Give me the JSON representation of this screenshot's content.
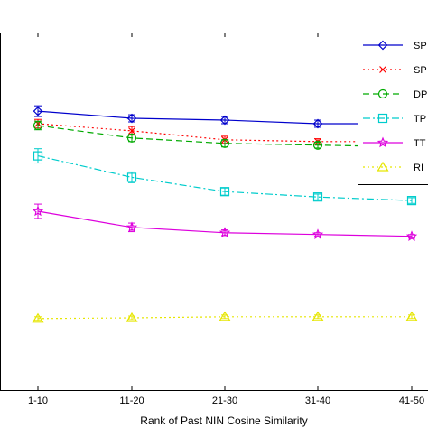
{
  "chart_data": {
    "type": "line",
    "title": "",
    "xlabel": "Rank of Past NIN Cosine Similarity",
    "ylabel": "",
    "categories": [
      "1-10",
      "11-20",
      "21-30",
      "31-40",
      "41-50"
    ],
    "ylim": [
      0,
      1
    ],
    "grid": false,
    "legend_position": "top-right",
    "series": [
      {
        "name": "SP",
        "values": [
          0.78,
          0.76,
          0.755,
          0.745,
          0.745
        ],
        "err": [
          0.015,
          0.01,
          0.01,
          0.01,
          0.008
        ],
        "color": "#0000cc",
        "linestyle": "solid",
        "marker": "diamond"
      },
      {
        "name": "SP",
        "values": [
          0.745,
          0.725,
          0.7,
          0.695,
          0.695
        ],
        "err": [
          0.012,
          0.012,
          0.01,
          0.008,
          0.008
        ],
        "color": "#ff0000",
        "linestyle": "dotted",
        "marker": "x"
      },
      {
        "name": "DP",
        "values": [
          0.74,
          0.705,
          0.69,
          0.685,
          0.68
        ],
        "err": [
          0.012,
          0.01,
          0.01,
          0.008,
          0.008
        ],
        "color": "#00aa00",
        "linestyle": "dashed",
        "marker": "circle"
      },
      {
        "name": "TP",
        "values": [
          0.655,
          0.595,
          0.555,
          0.54,
          0.53
        ],
        "err": [
          0.02,
          0.015,
          0.01,
          0.008,
          0.008
        ],
        "color": "#00cccc",
        "linestyle": "dashdot",
        "marker": "square"
      },
      {
        "name": "TT",
        "values": [
          0.5,
          0.455,
          0.44,
          0.435,
          0.43
        ],
        "err": [
          0.02,
          0.012,
          0.008,
          0.005,
          0.005
        ],
        "color": "#dd00dd",
        "linestyle": "solid",
        "marker": "star"
      },
      {
        "name": "RI",
        "values": [
          0.2,
          0.202,
          0.205,
          0.205,
          0.205
        ],
        "err": [
          0.005,
          0.005,
          0.005,
          0.005,
          0.005
        ],
        "color": "#e6e600",
        "linestyle": "dotted",
        "marker": "triangle"
      }
    ]
  }
}
